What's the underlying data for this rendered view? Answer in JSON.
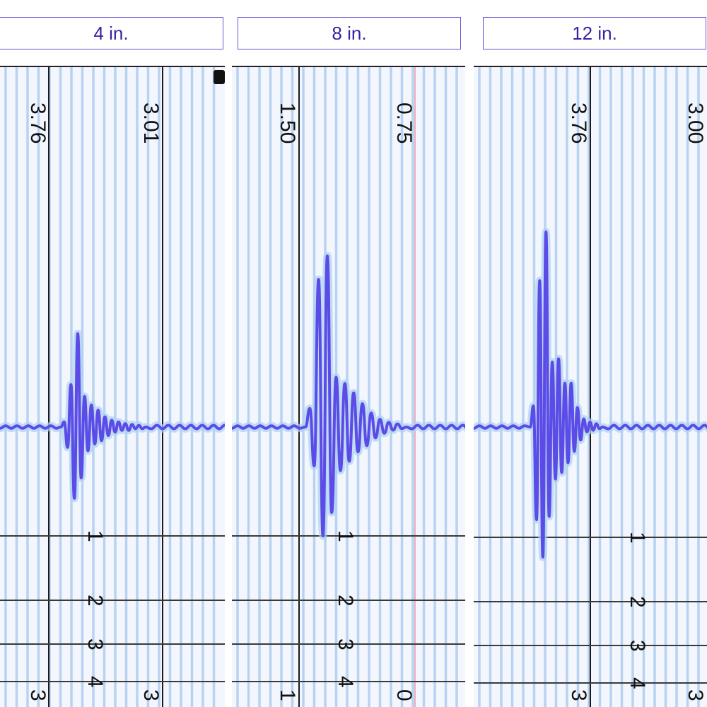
{
  "colors": {
    "tab_border": "#6b4fd8",
    "tab_text": "#3d1fa3",
    "grid_background": "#f3f6fc",
    "grid_line": "#b8d2f2",
    "waveform": "#5c4be6",
    "waveform_glow": "#a9d2f5",
    "marker_line": "#e79aa8"
  },
  "tabs": [
    {
      "label": "4 in."
    },
    {
      "label": "8 in."
    },
    {
      "label": "12 in."
    }
  ],
  "chart_data": [
    {
      "type": "line",
      "title": "4 in.",
      "time_markers": [
        "3.76",
        "3.01"
      ],
      "level_labels": [
        "1",
        "2",
        "3",
        "4"
      ],
      "bottom_labels": [
        "3",
        "3"
      ],
      "waveform": {
        "baseline_samples": 14,
        "amplitudes": [
          0.3,
          -1.2,
          2.5,
          -4.2,
          5.5,
          -3.0,
          1.8,
          -1.4,
          1.3,
          -1.0,
          1.0,
          -0.8,
          0.6,
          -0.5,
          0.4,
          -0.3,
          0.3,
          -0.2,
          0.2,
          -0.2,
          0.15,
          -0.1,
          0.1,
          -0.1
        ],
        "trailing_noise": 18
      }
    },
    {
      "type": "line",
      "title": "8 in.",
      "time_markers": [
        "1.50",
        "0.75"
      ],
      "level_labels": [
        "1",
        "2",
        "3",
        "4"
      ],
      "bottom_labels": [
        "1",
        "0"
      ],
      "waveform": {
        "baseline_samples": 20,
        "amplitudes": [
          1.2,
          -2.5,
          9.5,
          -7.0,
          11.0,
          -5.5,
          3.2,
          -2.8,
          2.8,
          -2.2,
          2.2,
          -1.6,
          1.5,
          -1.2,
          0.9,
          -0.7,
          0.5,
          -0.4,
          0.3,
          -0.2,
          0.2,
          -0.1
        ],
        "trailing_noise": 10
      }
    },
    {
      "type": "line",
      "title": "12 in.",
      "time_markers": [
        "3.76",
        "3.00"
      ],
      "level_labels": [
        "1",
        "2",
        "3",
        "4"
      ],
      "bottom_labels": [
        "3",
        "3"
      ],
      "waveform": {
        "baseline_samples": 16,
        "amplitudes": [
          1.3,
          -5.7,
          9.0,
          -8.0,
          12.0,
          -5.5,
          4.0,
          -3.2,
          4.2,
          -2.8,
          2.7,
          -2.2,
          2.7,
          -1.5,
          1.2,
          -0.8,
          0.5,
          -0.3,
          0.3,
          -0.2,
          0.2,
          -0.1
        ],
        "trailing_noise": 16
      }
    }
  ]
}
